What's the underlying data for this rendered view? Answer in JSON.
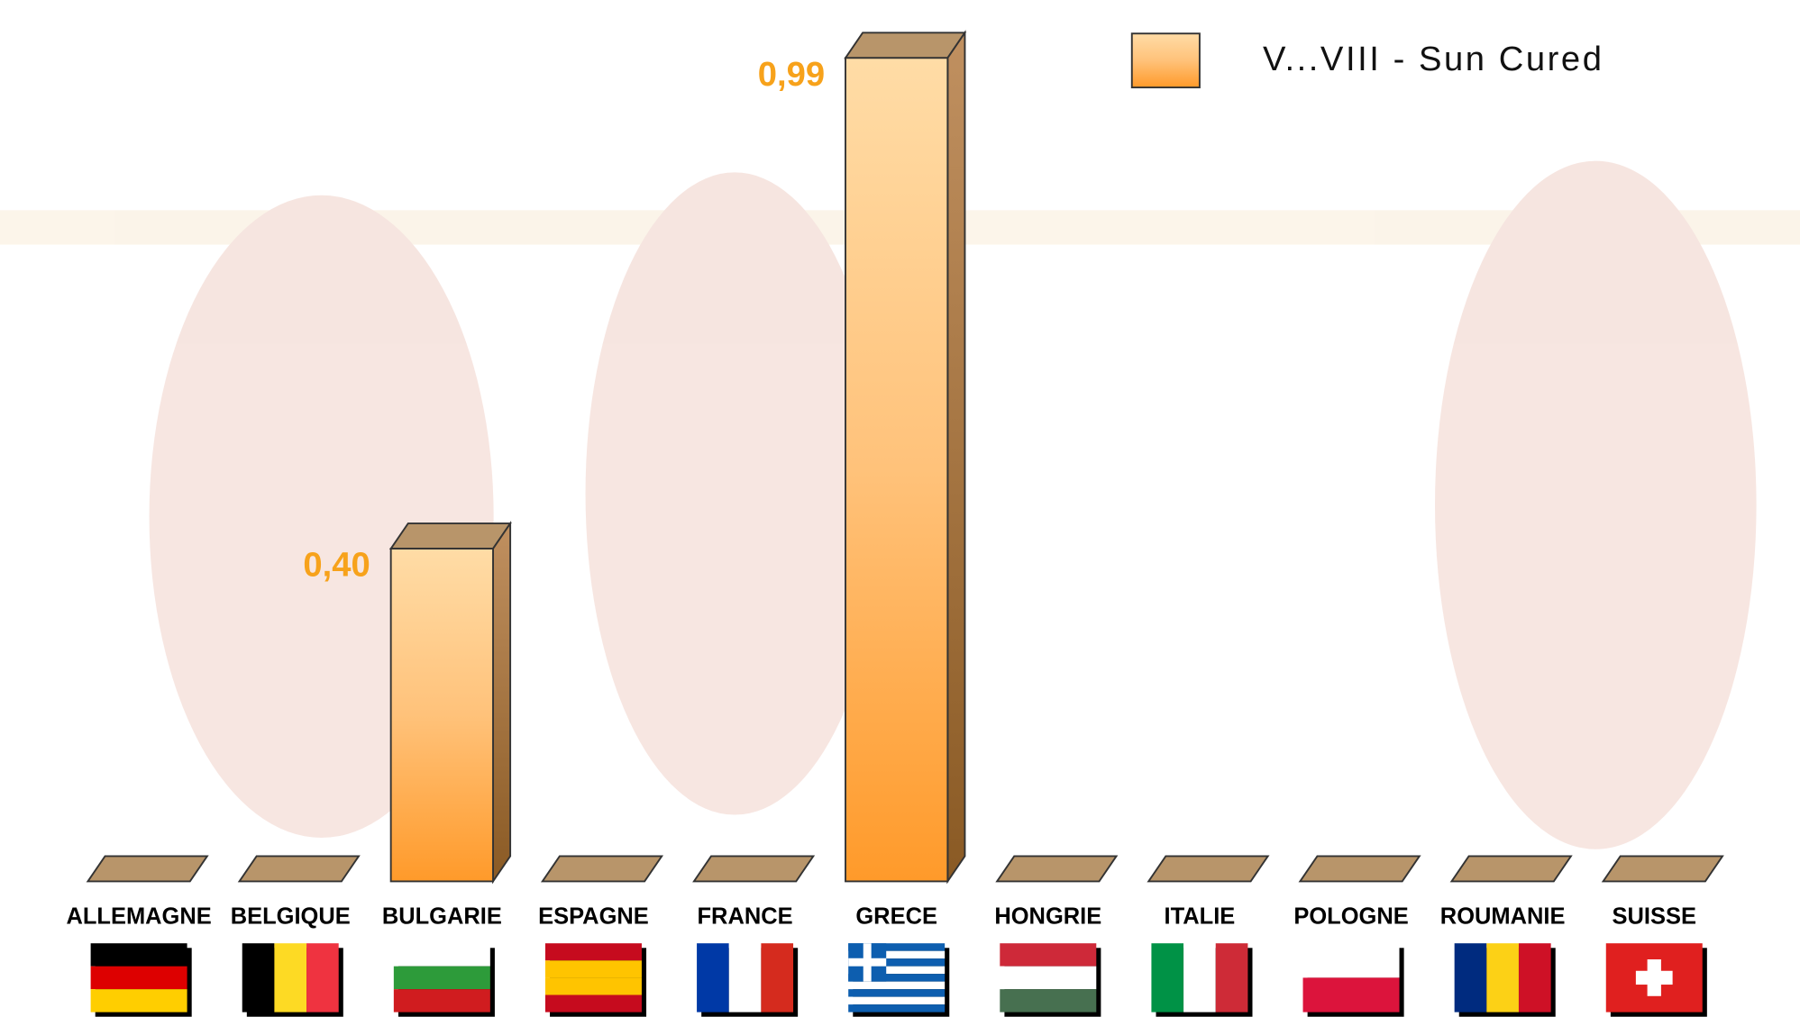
{
  "chart_data": {
    "type": "bar",
    "categories": [
      "ALLEMAGNE",
      "BELGIQUE",
      "BULGARIE",
      "ESPAGNE",
      "FRANCE",
      "GRECE",
      "HONGRIE",
      "ITALIE",
      "POLOGNE",
      "ROUMANIE",
      "SUISSE"
    ],
    "series": [
      {
        "name": "V...VIII  -  Sun Cured",
        "color": "#ff9a2a",
        "values": [
          0,
          0,
          0.4,
          0,
          0,
          0.99,
          0,
          0,
          0,
          0,
          0
        ],
        "value_labels": [
          null,
          null,
          "0,40",
          null,
          null,
          "0,99",
          null,
          null,
          null,
          null,
          null
        ]
      }
    ]
  }
}
